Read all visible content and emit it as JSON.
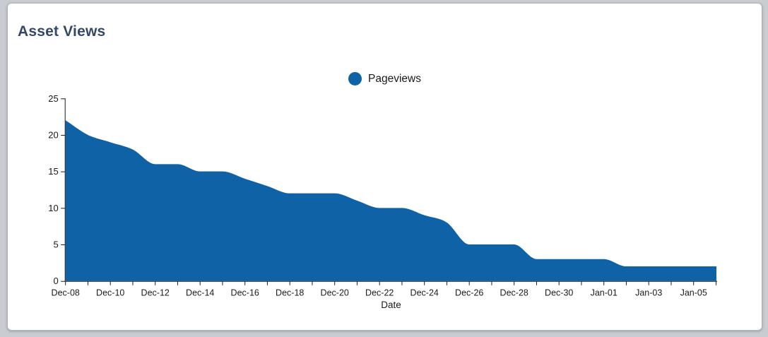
{
  "card": {
    "title": "Asset Views"
  },
  "legend": {
    "label": "Pageviews"
  },
  "colors": {
    "title_color": "#334766",
    "area_color": "#0e62a5",
    "legend_swatch_color": "#0e62a5",
    "axis_color": "#1a1a1a",
    "page_background": "#c9cdd2",
    "card_background": "#ffffff"
  },
  "chart_data": {
    "type": "area",
    "title": "Asset Views",
    "categories": [
      "Dec-08",
      "Dec-09",
      "Dec-10",
      "Dec-11",
      "Dec-12",
      "Dec-13",
      "Dec-14",
      "Dec-15",
      "Dec-16",
      "Dec-17",
      "Dec-18",
      "Dec-19",
      "Dec-20",
      "Dec-21",
      "Dec-22",
      "Dec-23",
      "Dec-24",
      "Dec-25",
      "Dec-26",
      "Dec-27",
      "Dec-28",
      "Dec-29",
      "Dec-30",
      "Dec-31",
      "Jan-01",
      "Jan-02",
      "Jan-03",
      "Jan-04",
      "Jan-05",
      "Jan-06"
    ],
    "series": [
      {
        "name": "Pageviews",
        "values": [
          22,
          20,
          19,
          18,
          16,
          16,
          15,
          15,
          14,
          13,
          12,
          12,
          12,
          11,
          10,
          10,
          9,
          8,
          5,
          5,
          5,
          3,
          3,
          3,
          3,
          2,
          2,
          2,
          2,
          2
        ]
      }
    ],
    "xlabel": "Date",
    "ylabel": "",
    "ylim": [
      0,
      25
    ],
    "y_ticks": [
      0,
      5,
      10,
      15,
      20,
      25
    ],
    "x_label_every": 2,
    "grid": false,
    "legend_position": "top-center",
    "curve": "smooth-monotone"
  }
}
